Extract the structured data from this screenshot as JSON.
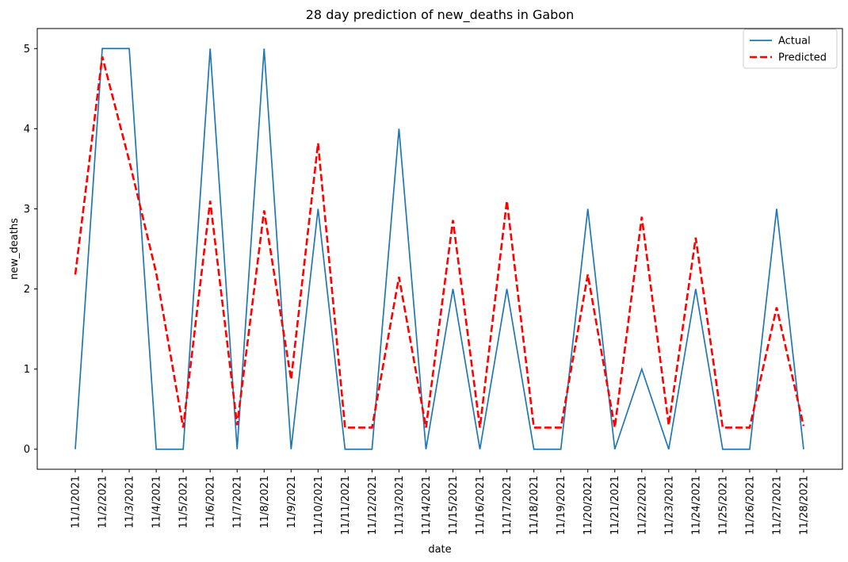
{
  "chart_data": {
    "type": "line",
    "title": "28 day prediction of new_deaths in Gabon",
    "xlabel": "date",
    "ylabel": "new_deaths",
    "x": [
      "11/1/2021",
      "11/2/2021",
      "11/3/2021",
      "11/4/2021",
      "11/5/2021",
      "11/6/2021",
      "11/7/2021",
      "11/8/2021",
      "11/9/2021",
      "11/10/2021",
      "11/11/2021",
      "11/12/2021",
      "11/13/2021",
      "11/14/2021",
      "11/15/2021",
      "11/16/2021",
      "11/17/2021",
      "11/18/2021",
      "11/19/2021",
      "11/20/2021",
      "11/21/2021",
      "11/22/2021",
      "11/23/2021",
      "11/24/2021",
      "11/25/2021",
      "11/26/2021",
      "11/27/2021",
      "11/28/2021"
    ],
    "yticks": [
      0,
      1,
      2,
      3,
      4,
      5
    ],
    "ylim": [
      -0.25,
      5.25
    ],
    "series": [
      {
        "name": "Actual",
        "color": "#1f77b4",
        "style": "solid",
        "values": [
          0,
          5,
          5,
          0,
          0,
          5,
          0,
          5,
          0,
          3,
          0,
          0,
          4,
          0,
          2,
          0,
          2,
          0,
          0,
          3,
          0,
          1,
          0,
          2,
          0,
          0,
          3,
          0
        ]
      },
      {
        "name": "Predicted",
        "color": "#ff0000",
        "style": "dashed",
        "values": [
          2.18,
          4.9,
          3.6,
          2.2,
          0.27,
          3.1,
          0.3,
          2.98,
          0.87,
          3.82,
          0.27,
          0.27,
          2.15,
          0.27,
          2.86,
          0.27,
          3.1,
          0.27,
          0.27,
          2.18,
          0.27,
          2.9,
          0.3,
          2.64,
          0.27,
          0.27,
          1.77,
          0.29
        ]
      }
    ],
    "legend_position": "top-right",
    "grid": false
  }
}
